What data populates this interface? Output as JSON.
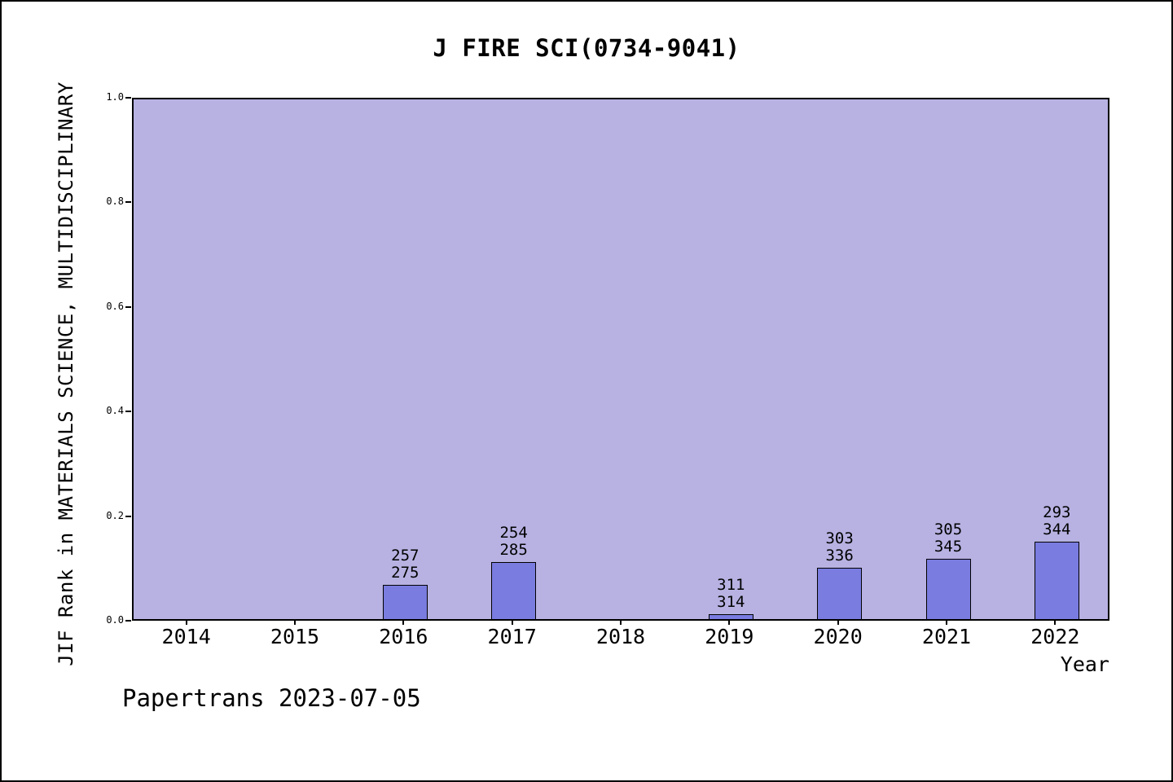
{
  "footer": "Papertrans 2023-07-05",
  "chart_data": {
    "type": "bar",
    "title": "J FIRE SCI(0734-9041)",
    "xlabel": "Year",
    "ylabel": "JIF Rank in MATERIALS SCIENCE, MULTIDISCIPLINARY",
    "ylim": [
      0.0,
      1.0
    ],
    "y_ticks": [
      0.0,
      0.2,
      0.4,
      0.6,
      0.8,
      1.0
    ],
    "grid": false,
    "legend": false,
    "categories": [
      "2014",
      "2015",
      "2016",
      "2017",
      "2018",
      "2019",
      "2020",
      "2021",
      "2022"
    ],
    "bars": [
      {
        "year": "2014",
        "rank": null,
        "total": null,
        "value": null
      },
      {
        "year": "2015",
        "rank": null,
        "total": null,
        "value": null
      },
      {
        "year": "2016",
        "rank": "257",
        "total": "275",
        "value": 0.065
      },
      {
        "year": "2017",
        "rank": "254",
        "total": "285",
        "value": 0.109
      },
      {
        "year": "2018",
        "rank": null,
        "total": null,
        "value": null
      },
      {
        "year": "2019",
        "rank": "311",
        "total": "314",
        "value": 0.01
      },
      {
        "year": "2020",
        "rank": "303",
        "total": "336",
        "value": 0.098
      },
      {
        "year": "2021",
        "rank": "305",
        "total": "345",
        "value": 0.116
      },
      {
        "year": "2022",
        "rank": "293",
        "total": "344",
        "value": 0.148
      }
    ],
    "colors": {
      "plot_bg": "#b7b2e2",
      "bar_fill": "#7a7ce0",
      "bar_edge": "#000000"
    }
  }
}
